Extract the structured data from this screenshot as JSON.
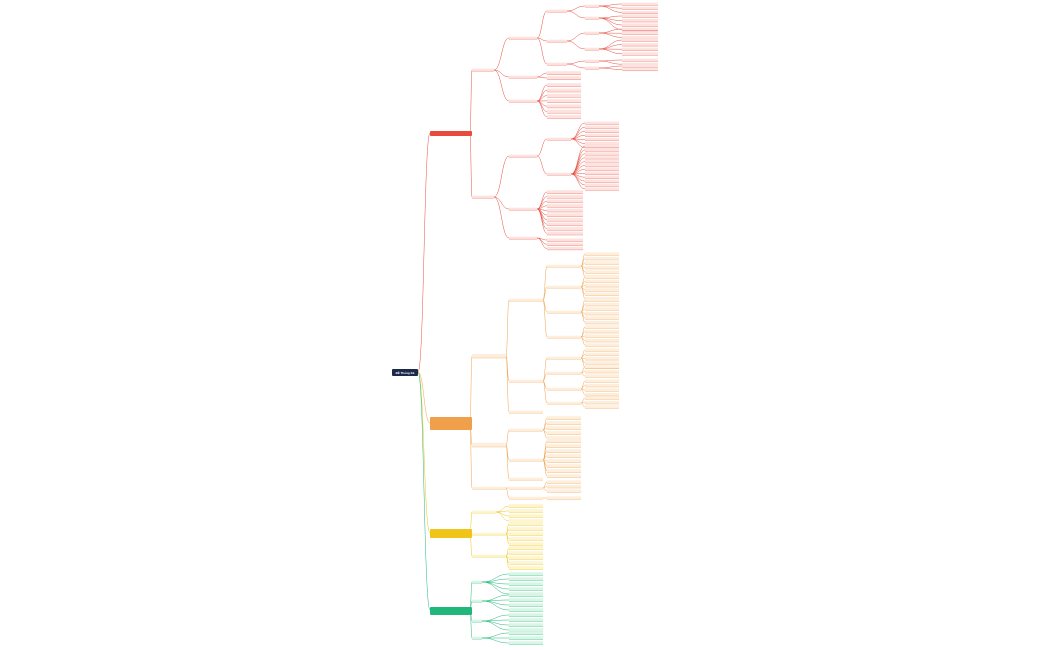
{
  "root": {
    "label": "ĐỀ Thống Kê"
  },
  "branches": [
    {
      "id": "red",
      "label": "",
      "color": "#e84a3c",
      "fill": "#fde3e0"
    },
    {
      "id": "orange",
      "label": "",
      "color": "#f0a04b",
      "fill": "#fdeedd"
    },
    {
      "id": "yellow",
      "label": "",
      "color": "#f0c419",
      "fill": "#fdf5cf"
    },
    {
      "id": "green",
      "label": "",
      "color": "#1fb87a",
      "fill": "#d8f5e6"
    }
  ]
}
